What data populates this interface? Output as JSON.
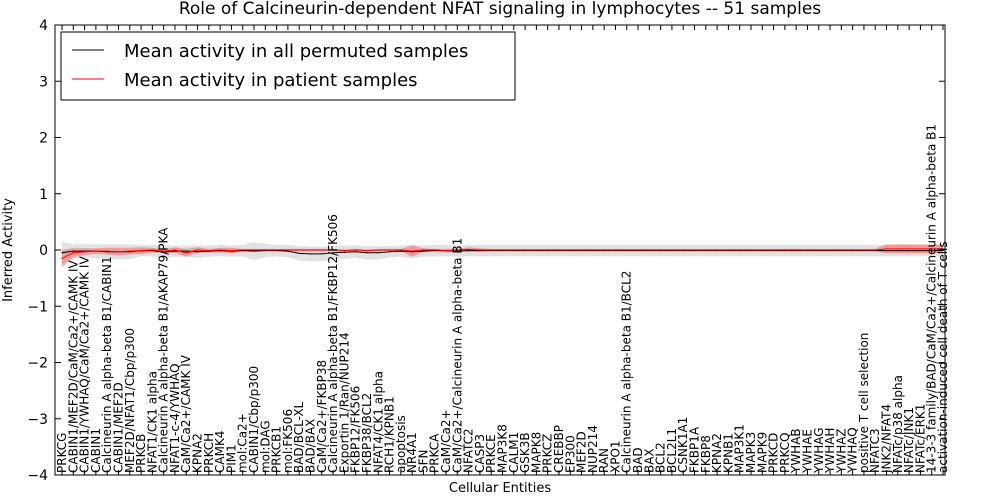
{
  "chart_data": {
    "type": "line",
    "title": "Role of Calcineurin-dependent NFAT signaling in lymphocytes -- 51 samples",
    "xlabel": "Cellular Entities",
    "ylabel": "Inferred Activity",
    "ylim": [
      -4,
      4
    ],
    "yticks": [
      -4,
      -3,
      -2,
      -1,
      0,
      1,
      2,
      3,
      4
    ],
    "legend_position": "top-left",
    "grid": false,
    "categories": [
      "PRKCG",
      "CABIN1/MEF2D/CaM/Ca2+/CAMK IV",
      "CABIN1/YWHAQ/CaM/Ca2+/CAMK IV",
      "CABIN1",
      "Calcineurin A alpha-beta B1/CABIN1",
      "CABIN1/MEF2D",
      "MEF2D/NFAT1/Cbp/p300",
      "PRKCB",
      "NFAT1/CK1 alpha",
      "Calcineurin A alpha-beta B1/AKAP79/PKA",
      "NFAT1-c-4/YWHAQ",
      "CaM/Ca2+/CAMK IV",
      "KPNA2",
      "PRKCH",
      "CAMK4",
      "PIM1",
      "mol:Ca2+",
      "CABIN1/Cbp/p300",
      "mol:DAG",
      "PRKCB1",
      "mol:FK506",
      "BAD/BCL-XL",
      "BAD/BAX",
      "CaM/Ca2+/FKBP38",
      "Calcineurin A alpha-beta B1/FKBP12/FK506",
      "Exportin 1/Ran/NUP214",
      "FKBP12/FK506",
      "FKBP38/BCL2",
      "NFAT4/CK1 alpha",
      "RCH1/KPNB1",
      "apoptosis",
      "NR4A1",
      "SFN",
      "PRKCA",
      "CaM/Ca2+",
      "CaM/Ca2+/Calcineurin A alpha-beta B1",
      "NFATC2",
      "CASP3",
      "PRKCE",
      "MAP3K8",
      "CALM1",
      "GSK3B",
      "MAPK8",
      "PRKCZ",
      "CREBBP",
      "EP300",
      "MEF2D",
      "NUP214",
      "RAN",
      "XPO1",
      "Calcineurin A alpha-beta B1/BCL2",
      "BAD",
      "BAX",
      "BCL2",
      "BCL2L1",
      "CSNK1A1",
      "FKBP1A",
      "FKBP8",
      "KPNA2",
      "KPNB1",
      "MAP3K1",
      "MAPK3",
      "MAPK9",
      "PRKCD",
      "PRKCQ",
      "YWHAB",
      "YWHAE",
      "YWHAG",
      "YWHAH",
      "YWHAZ",
      "YWHAQ",
      "positive T cell selection",
      "NFATC3",
      "JNK2/NFAT4",
      "NFATc/p38 alpha",
      "NFATc/JNK1",
      "NFATc/ERK1",
      "14-3-3 family/BAD/CaM/Ca2+/Calcineurin A alpha-beta B1",
      "activation-induced cell death of T cells"
    ],
    "series": [
      {
        "name": "Mean activity in all permuted samples",
        "color": "#000000",
        "values": [
          -0.05,
          -0.02,
          -0.02,
          -0.02,
          -0.03,
          -0.03,
          -0.03,
          -0.01,
          -0.01,
          -0.04,
          -0.02,
          -0.02,
          -0.03,
          -0.02,
          -0.01,
          -0.02,
          -0.01,
          -0.02,
          -0.01,
          -0.01,
          -0.02,
          -0.06,
          -0.07,
          -0.07,
          -0.05,
          -0.04,
          -0.03,
          -0.05,
          -0.05,
          -0.03,
          -0.02,
          -0.03,
          -0.02,
          -0.01,
          -0.01,
          -0.02,
          -0.01,
          -0.01,
          -0.01,
          -0.01,
          -0.01,
          -0.01,
          -0.01,
          -0.01,
          -0.01,
          -0.01,
          -0.01,
          -0.01,
          -0.01,
          -0.01,
          -0.01,
          -0.01,
          -0.01,
          -0.01,
          -0.01,
          -0.01,
          -0.01,
          -0.01,
          -0.01,
          -0.01,
          -0.01,
          -0.01,
          -0.01,
          -0.01,
          -0.01,
          -0.01,
          -0.01,
          -0.01,
          -0.01,
          -0.01,
          -0.01,
          -0.01,
          -0.01,
          -0.01,
          -0.01,
          -0.01,
          -0.01,
          -0.01,
          -0.01
        ],
        "band": [
          0.2,
          0.12,
          0.12,
          0.12,
          0.13,
          0.13,
          0.13,
          0.1,
          0.1,
          0.12,
          0.1,
          0.1,
          0.11,
          0.1,
          0.1,
          0.1,
          0.1,
          0.16,
          0.12,
          0.1,
          0.11,
          0.13,
          0.13,
          0.13,
          0.12,
          0.12,
          0.11,
          0.12,
          0.12,
          0.1,
          0.1,
          0.12,
          0.1,
          0.1,
          0.1,
          0.1,
          0.1,
          0.1,
          0.1,
          0.1,
          0.1,
          0.1,
          0.1,
          0.1,
          0.1,
          0.1,
          0.1,
          0.1,
          0.1,
          0.1,
          0.1,
          0.1,
          0.1,
          0.1,
          0.1,
          0.1,
          0.1,
          0.1,
          0.1,
          0.1,
          0.1,
          0.1,
          0.1,
          0.1,
          0.1,
          0.1,
          0.1,
          0.1,
          0.1,
          0.1,
          0.1,
          0.1,
          0.1,
          0.1,
          0.1,
          0.1,
          0.1,
          0.1,
          0.1
        ]
      },
      {
        "name": "Mean activity in patient samples",
        "color": "#ff0000",
        "values": [
          -0.15,
          -0.05,
          -0.03,
          -0.02,
          -0.02,
          -0.03,
          -0.02,
          -0.01,
          0.0,
          -0.02,
          0.0,
          -0.05,
          0.0,
          -0.01,
          0.0,
          -0.01,
          0.0,
          0.0,
          0.0,
          0.0,
          0.0,
          0.0,
          0.0,
          0.0,
          0.0,
          -0.01,
          0.0,
          -0.01,
          0.0,
          0.0,
          0.0,
          -0.02,
          0.0,
          0.0,
          -0.01,
          0.0,
          0.01,
          0.0,
          0.0,
          0.0,
          0.0,
          0.0,
          0.0,
          0.0,
          0.0,
          0.0,
          0.0,
          0.0,
          0.0,
          0.0,
          0.0,
          0.0,
          0.0,
          0.0,
          0.0,
          0.0,
          0.0,
          0.0,
          0.0,
          0.0,
          0.0,
          0.0,
          0.0,
          0.0,
          0.0,
          0.0,
          0.0,
          0.0,
          0.0,
          0.0,
          0.0,
          0.0,
          0.0,
          0.02,
          0.02,
          0.02,
          0.02,
          0.02,
          0.02
        ],
        "band": [
          0.15,
          0.08,
          0.06,
          0.05,
          0.06,
          0.07,
          0.06,
          0.06,
          0.04,
          0.03,
          0.05,
          0.07,
          0.05,
          0.03,
          0.04,
          0.05,
          0.02,
          0.02,
          0.02,
          0.02,
          0.02,
          0.02,
          0.02,
          0.02,
          0.02,
          0.02,
          0.02,
          0.02,
          0.02,
          0.02,
          0.02,
          0.1,
          0.03,
          0.02,
          0.03,
          0.02,
          0.04,
          0.03,
          0.02,
          0.02,
          0.02,
          0.02,
          0.02,
          0.02,
          0.02,
          0.02,
          0.02,
          0.02,
          0.02,
          0.02,
          0.02,
          0.02,
          0.02,
          0.02,
          0.02,
          0.02,
          0.02,
          0.02,
          0.02,
          0.02,
          0.02,
          0.02,
          0.02,
          0.02,
          0.02,
          0.02,
          0.02,
          0.02,
          0.02,
          0.02,
          0.02,
          0.02,
          0.02,
          0.08,
          0.08,
          0.08,
          0.08,
          0.08,
          0.08
        ]
      }
    ]
  }
}
